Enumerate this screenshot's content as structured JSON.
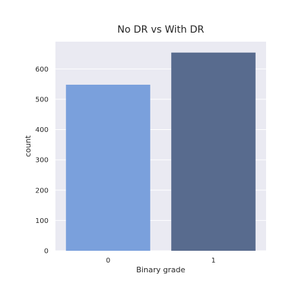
{
  "chart_data": {
    "type": "bar",
    "title": "No DR vs With DR",
    "xlabel": "Binary grade",
    "ylabel": "count",
    "categories": [
      "0",
      "1"
    ],
    "values": [
      548,
      654
    ],
    "colors": [
      "#7aa0dc",
      "#586b8e"
    ],
    "ylim": [
      0,
      690
    ],
    "yticks": [
      0,
      100,
      200,
      300,
      400,
      500,
      600
    ],
    "grid": true,
    "background": "#eaeaf2"
  }
}
